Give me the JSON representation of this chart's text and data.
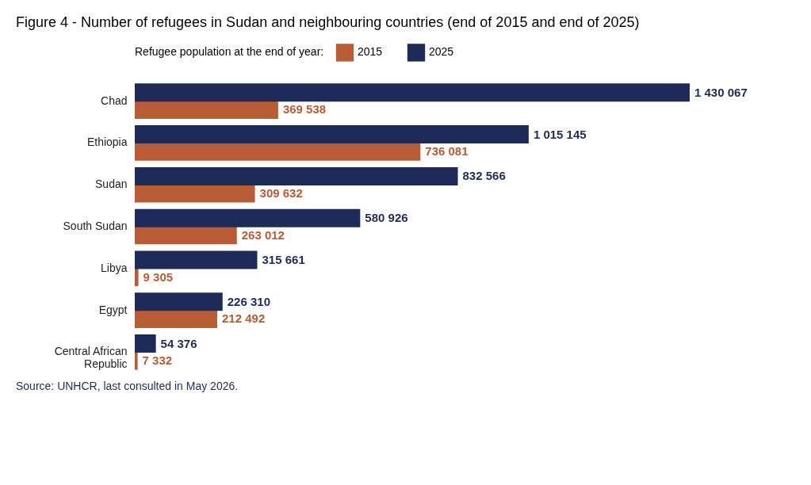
{
  "chart_data": {
    "type": "bar",
    "orientation": "horizontal",
    "title": "Figure 4 - Number of refugees in Sudan and neighbouring countries (end of 2015 and end of 2025)",
    "legend_title": "Refugee population at the end of year:",
    "legend": "top",
    "categories": [
      "Chad",
      "Ethiopia",
      "Sudan",
      "South Sudan",
      "Libya",
      "Egypt",
      "Central African Republic"
    ],
    "series": [
      {
        "name": "2015",
        "color": "#b85c35",
        "values": [
          369538,
          736081,
          309632,
          263012,
          9305,
          212492,
          7332
        ]
      },
      {
        "name": "2025",
        "color": "#1e2b58",
        "values": [
          1430067,
          1015145,
          832566,
          580926,
          315661,
          226310,
          54376
        ]
      }
    ],
    "data_labels": true,
    "annotations": [
      "Source: UNHCR, last consulted in May 2026."
    ]
  }
}
